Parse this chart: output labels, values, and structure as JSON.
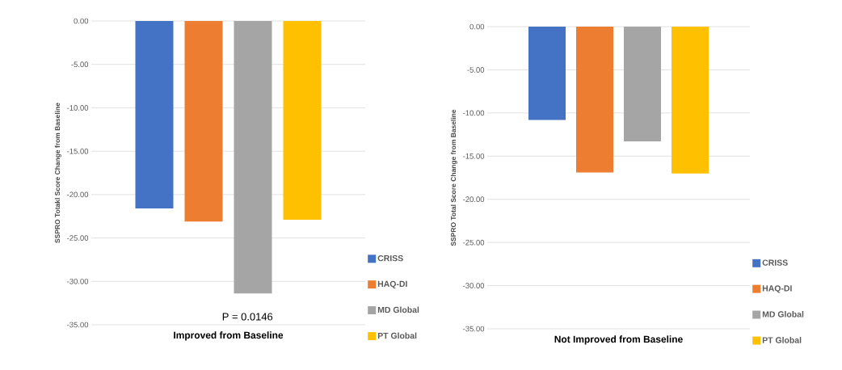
{
  "chart_data": [
    {
      "type": "bar",
      "xlabel": "Improved from Baseline",
      "ylabel": "SSPRO Totakl Score Change from Baseline",
      "annotations": [
        "P = 0.0146"
      ],
      "categories": [
        null
      ],
      "series": [
        {
          "name": "CRISS",
          "color": "#4472c4",
          "values": [
            -21.6
          ]
        },
        {
          "name": "HAQ-DI",
          "color": "#ed7d31",
          "values": [
            -23.1
          ]
        },
        {
          "name": "MD Global",
          "color": "#a5a5a5",
          "values": [
            -31.4
          ]
        },
        {
          "name": "PT Global",
          "color": "#ffc000",
          "values": [
            -22.9
          ]
        }
      ],
      "ylim": [
        -35,
        0
      ],
      "yticks": [
        {
          "value": -35,
          "label": "-35.00"
        },
        {
          "value": -30,
          "label": "-30.00"
        },
        {
          "value": -25,
          "label": "-25.00"
        },
        {
          "value": -20,
          "label": "-20.00"
        },
        {
          "value": -15,
          "label": "-15.00"
        },
        {
          "value": -10,
          "label": "-10.00"
        },
        {
          "value": -5,
          "label": "-5.00"
        },
        {
          "value": 0,
          "label": "0.00"
        }
      ],
      "grid": "y",
      "legend": "bottom right"
    },
    {
      "type": "bar",
      "xlabel": "Not Improved from Baseline",
      "ylabel": "SSPRO Total Score Change from Baseline",
      "categories": [
        null
      ],
      "series": [
        {
          "name": "CRISS",
          "color": "#4472c4",
          "values": [
            -10.8
          ]
        },
        {
          "name": "HAQ-DI",
          "color": "#ed7d31",
          "values": [
            -16.9
          ]
        },
        {
          "name": "MD Global",
          "color": "#a5a5a5",
          "values": [
            -13.3
          ]
        },
        {
          "name": "PT Global",
          "color": "#ffc000",
          "values": [
            -17.0
          ]
        }
      ],
      "ylim": [
        -35,
        0
      ],
      "yticks": [
        {
          "value": -35,
          "label": "-35.00"
        },
        {
          "value": -30,
          "label": "-30.00"
        },
        {
          "value": -25,
          "label": "-25.00"
        },
        {
          "value": -20,
          "label": "-20.00"
        },
        {
          "value": -15,
          "label": "-15.00"
        },
        {
          "value": -10,
          "label": "-10.00"
        },
        {
          "value": -5,
          "label": "-5.00"
        },
        {
          "value": 0,
          "label": "0.00"
        }
      ],
      "grid": "y",
      "legend": "bottom right"
    }
  ]
}
